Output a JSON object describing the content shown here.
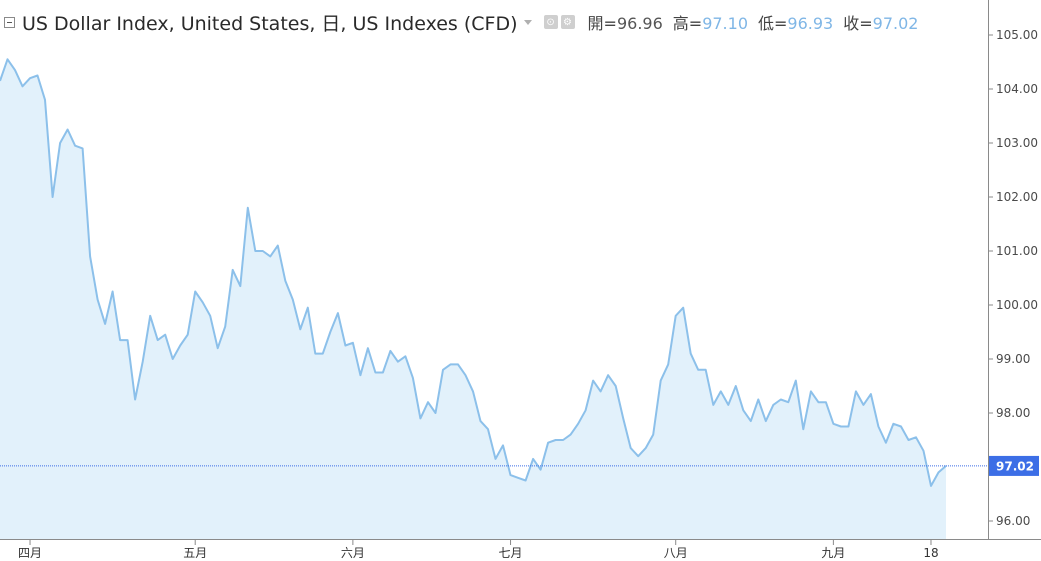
{
  "header": {
    "title": "US Dollar Index, United States, 日, US Indexes (CFD)",
    "open_label": "開=",
    "open_value": "96.96",
    "high_label": "高=",
    "high_value": "97.10",
    "low_label": "低=",
    "low_value": "96.93",
    "close_label": "收=",
    "close_value": "97.02"
  },
  "icons": [
    "collapse-icon",
    "chevron-down-icon",
    "eye-icon",
    "gear-icon"
  ],
  "chart_data": {
    "type": "area",
    "title": "US Dollar Index, United States, 日, US Indexes (CFD)",
    "line_color": "#8cc0ea",
    "fill_color": "#e2f1fb",
    "last_value_color": "#3c6ee6",
    "last_value": 97.02,
    "last_value_label": "97.02",
    "ylim": [
      95.7,
      105.5
    ],
    "y_ticks": [
      96,
      97,
      98,
      99,
      100,
      101,
      102,
      103,
      104,
      105
    ],
    "y_tick_labels": [
      "96.00",
      "97.00",
      "98.00",
      "99.00",
      "100.00",
      "101.00",
      "102.00",
      "103.00",
      "104.00",
      "105.00"
    ],
    "x_ticks": [
      {
        "label": "四月",
        "index": 4
      },
      {
        "label": "五月",
        "index": 26
      },
      {
        "label": "六月",
        "index": 47
      },
      {
        "label": "七月",
        "index": 68
      },
      {
        "label": "八月",
        "index": 90
      },
      {
        "label": "九月",
        "index": 111
      },
      {
        "label": "18",
        "index": 124
      }
    ],
    "series": [
      {
        "values": [
          104.15,
          104.55,
          104.35,
          104.05,
          104.2,
          104.25,
          103.8,
          102.0,
          103.0,
          103.25,
          102.95,
          102.9,
          100.9,
          100.1,
          99.65,
          100.25,
          99.35,
          99.35,
          98.25,
          98.95,
          99.8,
          99.35,
          99.45,
          99.0,
          99.25,
          99.45,
          100.25,
          100.05,
          99.8,
          99.2,
          99.6,
          100.65,
          100.35,
          101.8,
          101.0,
          101.0,
          100.9,
          101.1,
          100.45,
          100.1,
          99.55,
          99.95,
          99.1,
          99.1,
          99.5,
          99.85,
          99.25,
          99.3,
          98.7,
          99.2,
          98.75,
          98.75,
          99.15,
          98.95,
          99.05,
          98.65,
          97.9,
          98.2,
          98.0,
          98.8,
          98.9,
          98.9,
          98.7,
          98.4,
          97.85,
          97.7,
          97.15,
          97.4,
          96.85,
          96.8,
          96.75,
          97.15,
          96.95,
          97.45,
          97.5,
          97.5,
          97.6,
          97.8,
          98.05,
          98.6,
          98.4,
          98.7,
          98.5,
          97.9,
          97.35,
          97.2,
          97.35,
          97.6,
          98.6,
          98.9,
          99.8,
          99.95,
          99.1,
          98.8,
          98.8,
          98.15,
          98.4,
          98.15,
          98.5,
          98.05,
          97.85,
          98.25,
          97.85,
          98.15,
          98.25,
          98.2,
          98.6,
          97.7,
          98.4,
          98.2,
          98.2,
          97.8,
          97.75,
          97.75,
          98.4,
          98.15,
          98.35,
          97.75,
          97.45,
          97.8,
          97.75,
          97.5,
          97.55,
          97.3,
          96.65,
          96.9,
          97.02
        ]
      }
    ]
  }
}
